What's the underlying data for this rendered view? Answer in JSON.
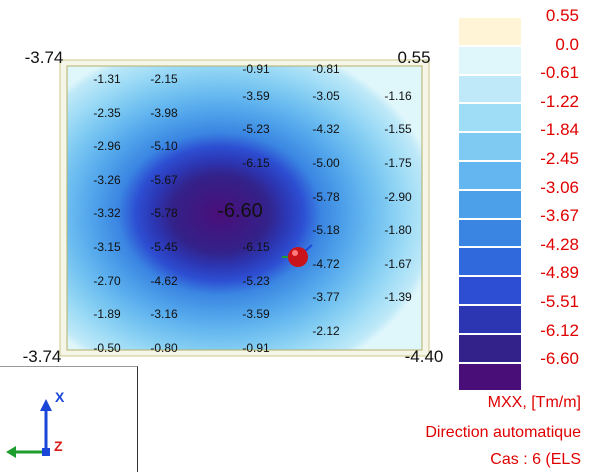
{
  "plot": {
    "corners": {
      "top_left": "-3.74",
      "top_right": "0.55",
      "bottom_left": "-3.74",
      "bottom_right": "-4.40"
    },
    "contour_labels": [
      {
        "text": "-1.31",
        "x": 0,
        "y": 0
      },
      {
        "text": "-2.15",
        "x": 1,
        "y": 0
      },
      {
        "text": "-0.91",
        "x": 2,
        "y": -0.3
      },
      {
        "text": "-0.81",
        "x": 3,
        "y": -0.3
      },
      {
        "text": "-3.59",
        "x": 2,
        "y": 0.5
      },
      {
        "text": "-3.05",
        "x": 3,
        "y": 0.5
      },
      {
        "text": "-1.16",
        "x": 4,
        "y": 0.5
      },
      {
        "text": "-2.35",
        "x": 0,
        "y": 1
      },
      {
        "text": "-3.98",
        "x": 1,
        "y": 1
      },
      {
        "text": "-5.23",
        "x": 2,
        "y": 1.5
      },
      {
        "text": "-4.32",
        "x": 3,
        "y": 1.5
      },
      {
        "text": "-1.55",
        "x": 4,
        "y": 1.5
      },
      {
        "text": "-2.96",
        "x": 0,
        "y": 2
      },
      {
        "text": "-5.10",
        "x": 1,
        "y": 2
      },
      {
        "text": "-6.15",
        "x": 2,
        "y": 2.5
      },
      {
        "text": "-5.00",
        "x": 3,
        "y": 2.5
      },
      {
        "text": "-1.75",
        "x": 4,
        "y": 2.5
      },
      {
        "text": "-3.26",
        "x": 0,
        "y": 3
      },
      {
        "text": "-5.67",
        "x": 1,
        "y": 3
      },
      {
        "text": "-5.78",
        "x": 3,
        "y": 3.5
      },
      {
        "text": "-2.90",
        "x": 4,
        "y": 3.5
      },
      {
        "text": "-3.32",
        "x": 0,
        "y": 4
      },
      {
        "text": "-5.78",
        "x": 1,
        "y": 4
      },
      {
        "text": "-5.18",
        "x": 3,
        "y": 4.5
      },
      {
        "text": "-1.80",
        "x": 4,
        "y": 4.5
      },
      {
        "text": "-3.15",
        "x": 0,
        "y": 5
      },
      {
        "text": "-5.45",
        "x": 1,
        "y": 5
      },
      {
        "text": "-6.15",
        "x": 2,
        "y": 5
      },
      {
        "text": "-4.72",
        "x": 3,
        "y": 5.5
      },
      {
        "text": "-1.67",
        "x": 4,
        "y": 5.5
      },
      {
        "text": "-2.70",
        "x": 0,
        "y": 6
      },
      {
        "text": "-4.62",
        "x": 1,
        "y": 6
      },
      {
        "text": "-5.23",
        "x": 2,
        "y": 6
      },
      {
        "text": "-3.77",
        "x": 3,
        "y": 6.5
      },
      {
        "text": "-1.39",
        "x": 4,
        "y": 6.5
      },
      {
        "text": "-1.89",
        "x": 0,
        "y": 7
      },
      {
        "text": "-3.16",
        "x": 1,
        "y": 7
      },
      {
        "text": "-3.59",
        "x": 2,
        "y": 7
      },
      {
        "text": "-2.12",
        "x": 3,
        "y": 7.5
      },
      {
        "text": "-0.50",
        "x": 0,
        "y": 8
      },
      {
        "text": "-0.80",
        "x": 1,
        "y": 8
      },
      {
        "text": "-0.91",
        "x": 2,
        "y": 8
      }
    ],
    "peak_label": "-6.60"
  },
  "legend": {
    "values": [
      "0.55",
      "0.0",
      "-0.61",
      "-1.22",
      "-1.84",
      "-2.45",
      "-3.06",
      "-3.67",
      "-4.28",
      "-4.89",
      "-5.51",
      "-6.12",
      "-6.60"
    ],
    "colors": [
      "#fff5d6",
      "#dff6fb",
      "#bfe9f8",
      "#9fdcf6",
      "#7fcaf2",
      "#63b6ef",
      "#4c9fe9",
      "#3a85e2",
      "#2f69dc",
      "#2d4ed2",
      "#2c36b3",
      "#33228a",
      "#4a0e78"
    ]
  },
  "caption": {
    "quantity": "MXX, [Tm/m]",
    "direction": "Direction automatique",
    "case": "Cas : 6 (ELS"
  },
  "triad": {
    "x_axis": "X",
    "z_axis": "Z",
    "x_color": "#1a47d8",
    "y_color": "#1e9e2e",
    "z_color": "#d81a1a"
  }
}
